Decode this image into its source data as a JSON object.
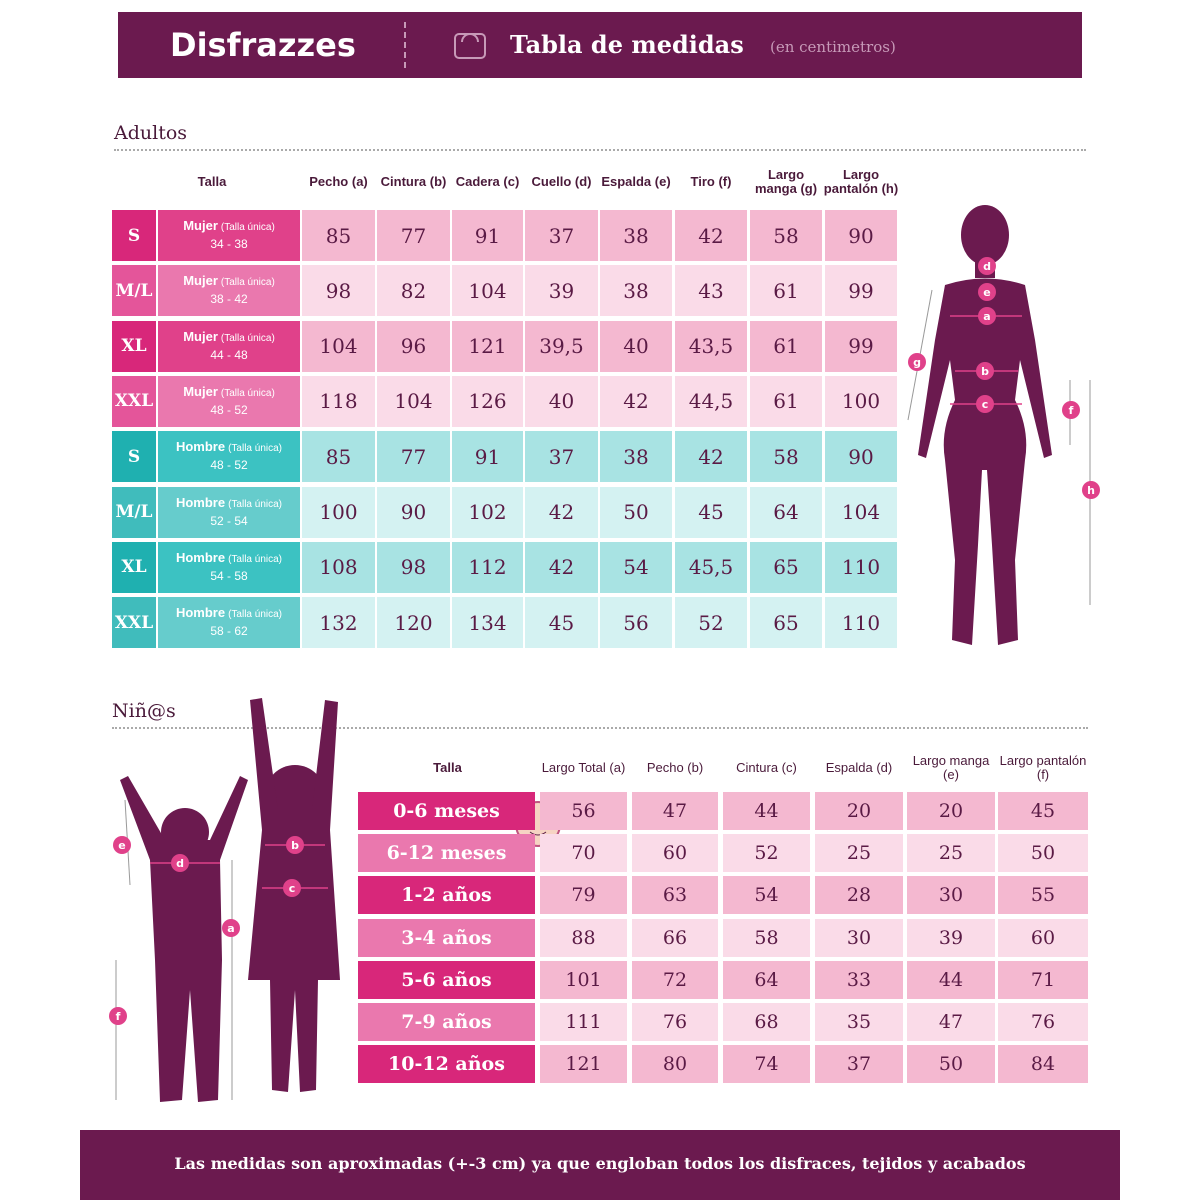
{
  "header": {
    "brand": "Disfrazzes",
    "title": "Tabla de medidas",
    "subtitle": "(en centimetros)"
  },
  "adults": {
    "title": "Adultos",
    "columns": [
      "Talla",
      "Pecho (a)",
      "Cintura (b)",
      "Cadera (c)",
      "Cuello (d)",
      "Espalda (e)",
      "Tiro (f)",
      "Largo manga (g)",
      "Largo pantalón (h)"
    ],
    "rows": [
      {
        "size": "S",
        "group": "Mujer",
        "note": "(Talla única)",
        "range": "34 - 38",
        "values": [
          85,
          77,
          91,
          37,
          38,
          42,
          58,
          90
        ]
      },
      {
        "size": "M/L",
        "group": "Mujer",
        "note": "(Talla única)",
        "range": "38 - 42",
        "values": [
          98,
          82,
          104,
          39,
          38,
          43,
          61,
          99
        ]
      },
      {
        "size": "XL",
        "group": "Mujer",
        "note": "(Talla única)",
        "range": "44 - 48",
        "values": [
          104,
          96,
          121,
          "39,5",
          40,
          "43,5",
          61,
          99
        ]
      },
      {
        "size": "XXL",
        "group": "Mujer",
        "note": "(Talla única)",
        "range": "48 - 52",
        "values": [
          118,
          104,
          126,
          40,
          42,
          "44,5",
          61,
          100
        ]
      },
      {
        "size": "S",
        "group": "Hombre",
        "note": "(Talla única)",
        "range": "48 - 52",
        "values": [
          85,
          77,
          91,
          37,
          38,
          42,
          58,
          90
        ]
      },
      {
        "size": "M/L",
        "group": "Hombre",
        "note": "(Talla única)",
        "range": "52 - 54",
        "values": [
          100,
          90,
          102,
          42,
          50,
          45,
          64,
          104
        ]
      },
      {
        "size": "XL",
        "group": "Hombre",
        "note": "(Talla única)",
        "range": "54 - 58",
        "values": [
          108,
          98,
          112,
          42,
          54,
          "45,5",
          65,
          110
        ]
      },
      {
        "size": "XXL",
        "group": "Hombre",
        "note": "(Talla única)",
        "range": "58 - 62",
        "values": [
          132,
          120,
          134,
          45,
          56,
          52,
          65,
          110
        ]
      }
    ],
    "markers": [
      "d",
      "e",
      "a",
      "g",
      "b",
      "c",
      "f",
      "h"
    ]
  },
  "kids": {
    "title": "Niñ@s",
    "columns": [
      "Talla",
      "Largo Total (a)",
      "Pecho (b)",
      "Cintura (c)",
      "Espalda (d)",
      "Largo manga (e)",
      "Largo pantalón (f)"
    ],
    "rows": [
      {
        "size": "0-6 meses",
        "values": [
          56,
          47,
          44,
          20,
          20,
          45
        ]
      },
      {
        "size": "6-12 meses",
        "values": [
          70,
          60,
          52,
          25,
          25,
          50
        ]
      },
      {
        "size": "1-2 años",
        "values": [
          79,
          63,
          54,
          28,
          30,
          55
        ]
      },
      {
        "size": "3-4 años",
        "values": [
          88,
          66,
          58,
          30,
          39,
          60
        ]
      },
      {
        "size": "5-6 años",
        "values": [
          101,
          72,
          64,
          33,
          44,
          71
        ]
      },
      {
        "size": "7-9 años",
        "values": [
          111,
          76,
          68,
          35,
          47,
          76
        ]
      },
      {
        "size": "10-12 años",
        "values": [
          121,
          80,
          74,
          37,
          50,
          84
        ]
      }
    ],
    "markers": [
      "e",
      "d",
      "b",
      "c",
      "a",
      "f"
    ]
  },
  "footer": "Las medidas son aproximadas (+-3 cm) ya que engloban todos los disfraces, tejidos y acabados"
}
